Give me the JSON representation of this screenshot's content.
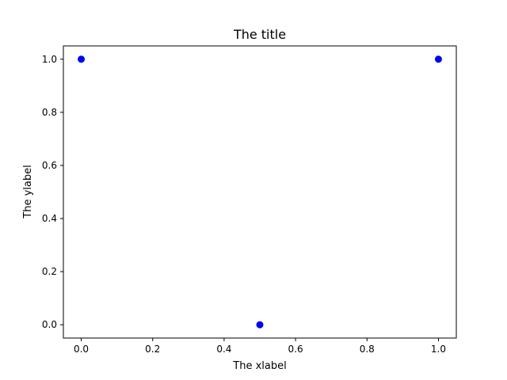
{
  "chart_data": {
    "type": "scatter",
    "title": "The title",
    "xlabel": "The xlabel",
    "ylabel": "The ylabel",
    "xlim": [
      -0.05,
      1.05
    ],
    "ylim": [
      -0.05,
      1.05
    ],
    "xticks": [
      "0.0",
      "0.2",
      "0.4",
      "0.6",
      "0.8",
      "1.0"
    ],
    "yticks": [
      "0.0",
      "0.2",
      "0.4",
      "0.6",
      "0.8",
      "1.0"
    ],
    "grid": false,
    "series": [
      {
        "color": "#0000ff",
        "marker": "circle",
        "points": [
          {
            "x": 0.0,
            "y": 1.0
          },
          {
            "x": 0.5,
            "y": 0.0
          },
          {
            "x": 1.0,
            "y": 1.0
          }
        ]
      }
    ]
  }
}
